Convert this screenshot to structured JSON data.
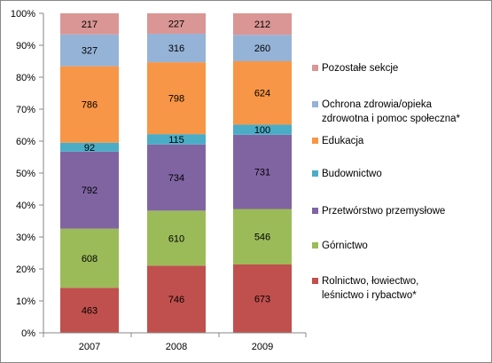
{
  "chart_data": {
    "type": "bar",
    "stacked": "percent",
    "title": "",
    "xlabel": "",
    "ylabel": "",
    "categories": [
      "2007",
      "2008",
      "2009"
    ],
    "ylim": [
      0,
      100
    ],
    "yticks": [
      "0%",
      "10%",
      "20%",
      "30%",
      "40%",
      "50%",
      "60%",
      "70%",
      "80%",
      "90%",
      "100%"
    ],
    "grid": false,
    "legend_position": "right",
    "series": [
      {
        "name": "Rolnictwo, łowiectwo,\nleśnictwo i rybactwo*",
        "color": "#C0504D",
        "values": [
          463,
          746,
          673
        ]
      },
      {
        "name": "Górnictwo",
        "color": "#9BBB59",
        "values": [
          608,
          610,
          546
        ]
      },
      {
        "name": "Przetwórstwo przemysłowe",
        "color": "#8064A2",
        "values": [
          792,
          734,
          731
        ]
      },
      {
        "name": "Budownictwo",
        "color": "#4BACC6",
        "values": [
          92,
          115,
          100
        ]
      },
      {
        "name": "Edukacja",
        "color": "#F79646",
        "values": [
          786,
          798,
          624
        ]
      },
      {
        "name": "Ochrona zdrowia/opieka\nzdrowotna i pomoc społeczna*",
        "color": "#95B3D7",
        "values": [
          327,
          316,
          260
        ]
      },
      {
        "name": "Pozostałe sekcje",
        "color": "#D99694",
        "values": [
          217,
          227,
          212
        ]
      }
    ]
  }
}
